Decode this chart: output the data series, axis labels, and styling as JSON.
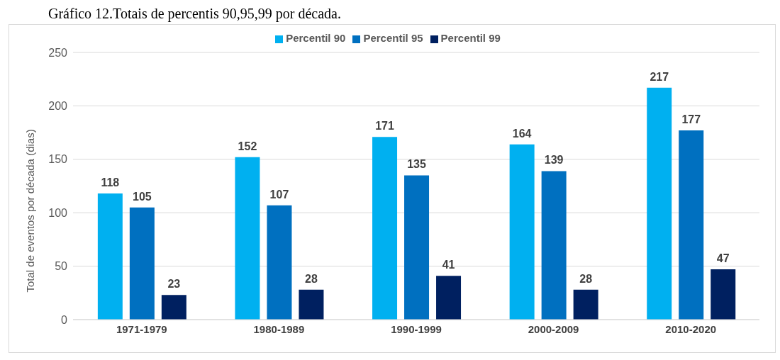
{
  "chart_data": {
    "type": "bar",
    "title": "Gráfico 12.Totais de percentis 90,95,99 por década.",
    "ylabel": "Total de eventos por década (dias)",
    "categories": [
      "1971-1979",
      "1980-1989",
      "1990-1999",
      "2000-2009",
      "2010-2020"
    ],
    "series": [
      {
        "name": "Percentil 90",
        "color": "#00b0f0",
        "values": [
          118,
          152,
          171,
          164,
          217
        ]
      },
      {
        "name": "Percentil 95",
        "color": "#0070c0",
        "values": [
          105,
          107,
          135,
          139,
          177
        ]
      },
      {
        "name": "Percentil 99",
        "color": "#002060",
        "values": [
          23,
          28,
          41,
          28,
          47
        ]
      }
    ],
    "ylim": [
      0,
      250
    ],
    "yticks": [
      0,
      50,
      100,
      150,
      200,
      250
    ],
    "grid": "y",
    "legend": "top",
    "data_labels": true
  }
}
